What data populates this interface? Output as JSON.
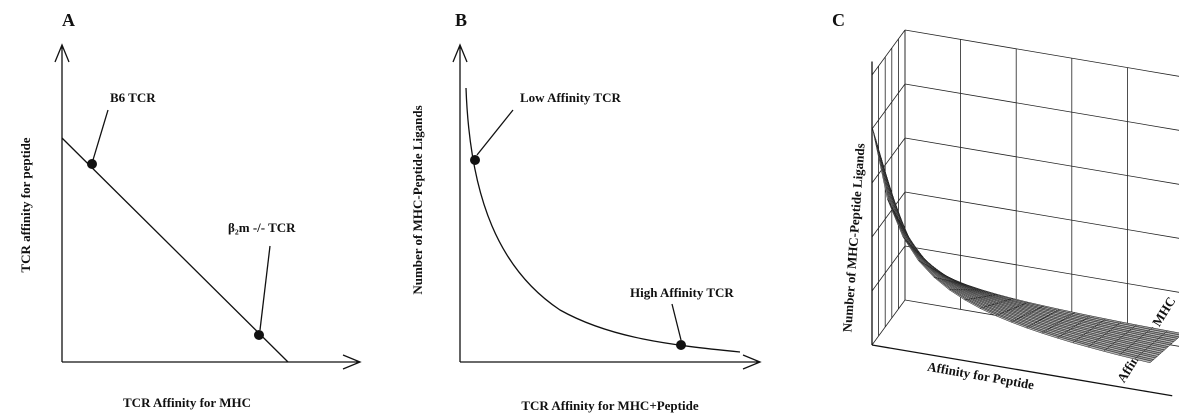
{
  "panels": [
    {
      "letter": "A",
      "x_label": "TCR Affinity for MHC",
      "y_label": "TCR affinity for peptide",
      "annotations": [
        "B6 TCR",
        "β₂m -/- TCR"
      ]
    },
    {
      "letter": "B",
      "x_label": "TCR Affinity for MHC+Peptide",
      "y_label": "Number of MHC-Peptide Ligands",
      "annotations": [
        "Low Affinity TCR",
        "High Affinity TCR"
      ]
    },
    {
      "letter": "C",
      "x_label": "Affinity for Peptide",
      "y_label": "Number of MHC-Peptide Ligands",
      "z_label": "Affinity for MHC"
    }
  ]
}
